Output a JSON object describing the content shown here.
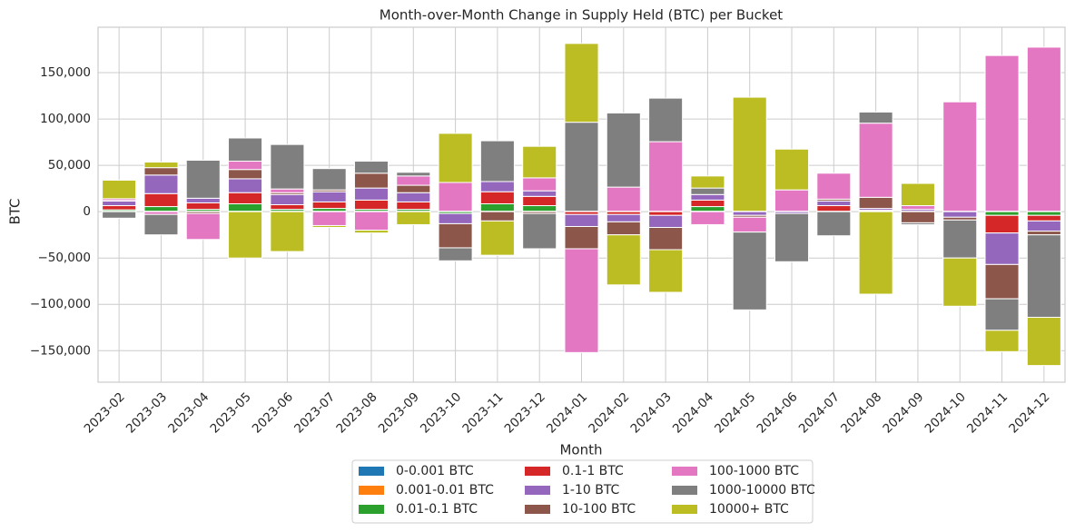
{
  "chart_data": {
    "type": "bar",
    "stacked": true,
    "title": "Month-over-Month Change in Supply Held (BTC) per Bucket",
    "x_label": "Month",
    "y_label": "BTC",
    "categories": [
      "2023-02",
      "2023-03",
      "2023-04",
      "2023-05",
      "2023-06",
      "2023-07",
      "2023-08",
      "2023-09",
      "2023-10",
      "2023-11",
      "2023-12",
      "2024-01",
      "2024-02",
      "2024-03",
      "2024-04",
      "2024-05",
      "2024-06",
      "2024-07",
      "2024-08",
      "2024-09",
      "2024-10",
      "2024-11",
      "2024-12"
    ],
    "series": [
      {
        "name": "0-0.001 BTC",
        "color": "#1f77b4",
        "values": [
          200,
          200,
          200,
          200,
          200,
          200,
          200,
          200,
          200,
          200,
          200,
          200,
          200,
          200,
          200,
          200,
          200,
          200,
          200,
          200,
          200,
          200,
          200
        ]
      },
      {
        "name": "0.001-0.01 BTC",
        "color": "#ff7f0e",
        "values": [
          300,
          300,
          300,
          300,
          300,
          300,
          300,
          300,
          300,
          300,
          300,
          300,
          300,
          300,
          300,
          300,
          300,
          300,
          300,
          300,
          300,
          300,
          300
        ]
      },
      {
        "name": "0.01-0.1 BTC",
        "color": "#2ca02c",
        "values": [
          1500,
          5000,
          2000,
          8000,
          2000,
          3000,
          2000,
          2000,
          -2000,
          8000,
          6000,
          0,
          0,
          0,
          5000,
          0,
          0,
          0,
          1000,
          0,
          0,
          -4000,
          -4000
        ]
      },
      {
        "name": "0.1-1 BTC",
        "color": "#d62728",
        "values": [
          4500,
          14000,
          7000,
          12000,
          5000,
          7000,
          10000,
          8000,
          0,
          13000,
          10000,
          -3000,
          -3000,
          -4000,
          7000,
          0,
          0,
          6000,
          0,
          0,
          0,
          -19000,
          -6000
        ]
      },
      {
        "name": "1-10 BTC",
        "color": "#9467bd",
        "values": [
          5000,
          20000,
          5000,
          15000,
          11000,
          11000,
          13000,
          10000,
          -11000,
          11000,
          6000,
          -13000,
          -8000,
          -13000,
          6000,
          -4000,
          -2000,
          5000,
          2000,
          2000,
          -6000,
          -34000,
          -11000
        ]
      },
      {
        "name": "10-100 BTC",
        "color": "#8c564b",
        "values": [
          500,
          8000,
          -2000,
          10000,
          2000,
          2000,
          16000,
          8000,
          -26000,
          -10000,
          -2000,
          -24000,
          -14000,
          -24000,
          0,
          -2000,
          0,
          2000,
          12000,
          -12000,
          -3000,
          -37000,
          -4000
        ]
      },
      {
        "name": "100-1000 BTC",
        "color": "#e377c2",
        "values": [
          2000,
          -3000,
          -28000,
          9000,
          4000,
          -15000,
          -20000,
          10000,
          31000,
          0,
          14000,
          -112000,
          26000,
          75000,
          -14000,
          -16000,
          23000,
          28000,
          80000,
          4000,
          118000,
          168000,
          177000
        ]
      },
      {
        "name": "1000-10000 BTC",
        "color": "#7f7f7f",
        "values": [
          -7000,
          -22000,
          41000,
          25000,
          48000,
          23000,
          13000,
          4000,
          -14000,
          44000,
          -38000,
          96000,
          80000,
          47000,
          7000,
          -84000,
          -52000,
          -26000,
          12000,
          -2000,
          -41000,
          -34000,
          -89000
        ]
      },
      {
        "name": "10000+ BTC",
        "color": "#bcbd22",
        "values": [
          20000,
          6000,
          0,
          -50000,
          -43000,
          -2000,
          -3000,
          -14000,
          53000,
          -37000,
          34000,
          85000,
          -54000,
          -46000,
          13000,
          123000,
          44000,
          0,
          -89000,
          24000,
          -52000,
          -23000,
          -52000
        ]
      }
    ],
    "ylim": [
      -184000,
      199000
    ],
    "yticks": [
      {
        "value": -150000,
        "label": "−150,000"
      },
      {
        "value": -100000,
        "label": "−100,000"
      },
      {
        "value": -50000,
        "label": "−50,000"
      },
      0,
      {
        "value": 50000,
        "label": "50,000"
      },
      {
        "value": 100000,
        "label": "100,000"
      },
      {
        "value": 150000,
        "label": "150,000"
      }
    ],
    "grid": true,
    "legend": "lower center"
  }
}
